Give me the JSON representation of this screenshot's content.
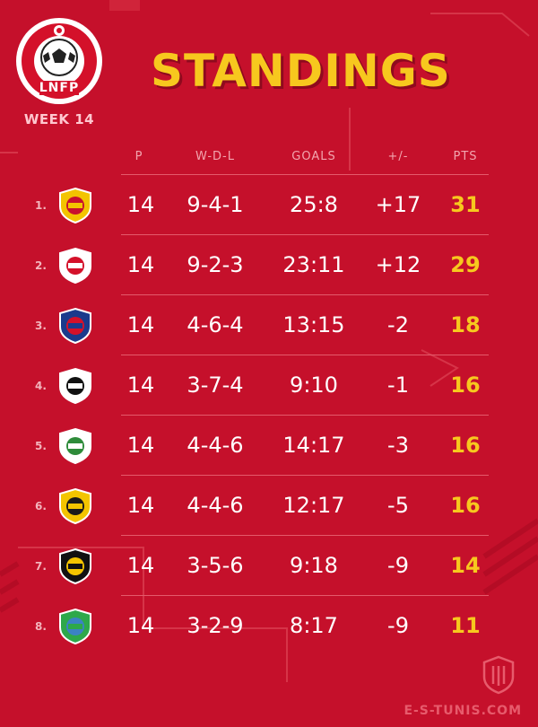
{
  "header": {
    "title": "STANDINGS",
    "week": "WEEK 14",
    "logo_text": "LNFP"
  },
  "columns": [
    "P",
    "W-D-L",
    "GOALS",
    "+/-",
    "PTS"
  ],
  "rows": [
    {
      "rank": "1.",
      "p": "14",
      "wdl": "9-4-1",
      "goals": "25:8",
      "diff": "+17",
      "pts": "31",
      "crest": "esperance-crest-icon",
      "c1": "#f3c400",
      "c2": "#c8102e"
    },
    {
      "rank": "2.",
      "p": "14",
      "wdl": "9-2-3",
      "goals": "23:11",
      "diff": "+12",
      "pts": "29",
      "crest": "etoile-sahel-crest-icon",
      "c1": "#ffffff",
      "c2": "#d4112a"
    },
    {
      "rank": "3.",
      "p": "14",
      "wdl": "4-6-4",
      "goals": "13:15",
      "diff": "-2",
      "pts": "18",
      "crest": "ust-crest-icon",
      "c1": "#1b3a8c",
      "c2": "#d4112a"
    },
    {
      "rank": "4.",
      "p": "14",
      "wdl": "3-7-4",
      "goals": "9:10",
      "diff": "-1",
      "pts": "16",
      "crest": "css-crest-icon",
      "c1": "#ffffff",
      "c2": "#111111"
    },
    {
      "rank": "5.",
      "p": "14",
      "wdl": "4-4-6",
      "goals": "14:17",
      "diff": "-3",
      "pts": "16",
      "crest": "stade-tunisien-crest-icon",
      "c1": "#ffffff",
      "c2": "#2e8b3a"
    },
    {
      "rank": "6.",
      "p": "14",
      "wdl": "4-4-6",
      "goals": "12:17",
      "diff": "-5",
      "pts": "16",
      "crest": "club-1936-crest-icon",
      "c1": "#f3c400",
      "c2": "#1a1a1a"
    },
    {
      "rank": "7.",
      "p": "14",
      "wdl": "3-5-6",
      "goals": "9:18",
      "diff": "-9",
      "pts": "14",
      "crest": "esz-crest-icon",
      "c1": "#111111",
      "c2": "#f3c400"
    },
    {
      "rank": "8.",
      "p": "14",
      "wdl": "3-2-9",
      "goals": "8:17",
      "diff": "-9",
      "pts": "11",
      "crest": "green-crest-icon",
      "c1": "#2ea84a",
      "c2": "#3b82c4"
    }
  ],
  "footer": {
    "brand": "E-S-TUNIS.COM"
  }
}
